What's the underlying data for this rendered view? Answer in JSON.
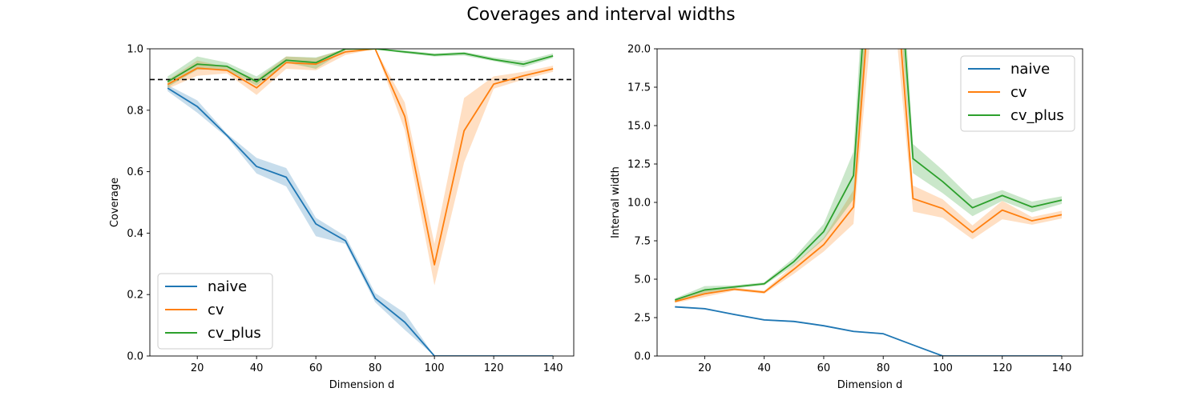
{
  "figure": {
    "title": "Coverages and interval widths"
  },
  "colors": {
    "naive": "#1f77b4",
    "cv": "#ff7f0e",
    "cv_plus": "#2ca02c",
    "reference": "#000000"
  },
  "chart_data": [
    {
      "type": "line",
      "xlabel": "Dimension d",
      "ylabel": "Coverage",
      "xlim": [
        4,
        147
      ],
      "ylim": [
        0,
        1.0
      ],
      "xticks": [
        20,
        40,
        60,
        80,
        100,
        120,
        140
      ],
      "yticks": [
        0.0,
        0.2,
        0.4,
        0.6,
        0.8,
        1.0
      ],
      "ytick_labels": [
        "0.0",
        "0.2",
        "0.4",
        "0.6",
        "0.8",
        "1.0"
      ],
      "reference_line": {
        "y": 0.9,
        "style": "dashed"
      },
      "legend_position": "lower-left",
      "grid": false,
      "x": [
        10,
        20,
        30,
        40,
        50,
        60,
        70,
        80,
        90,
        100,
        110,
        120,
        130,
        140
      ],
      "series": [
        {
          "name": "naive",
          "color": "#1f77b4",
          "values": [
            0.872,
            0.812,
            0.718,
            0.617,
            0.582,
            0.43,
            0.375,
            0.188,
            0.11,
            0.0,
            0.0,
            0.0,
            0.0,
            0.0
          ],
          "lower": [
            0.862,
            0.792,
            0.712,
            0.594,
            0.552,
            0.39,
            0.365,
            0.175,
            0.085,
            0.0,
            0.0,
            0.0,
            0.0,
            0.0
          ],
          "upper": [
            0.882,
            0.832,
            0.724,
            0.645,
            0.612,
            0.45,
            0.39,
            0.205,
            0.14,
            0.0,
            0.0,
            0.0,
            0.0,
            0.0
          ]
        },
        {
          "name": "cv",
          "color": "#ff7f0e",
          "values": [
            0.884,
            0.937,
            0.93,
            0.873,
            0.955,
            0.95,
            0.99,
            1.0,
            0.78,
            0.297,
            0.733,
            0.885,
            0.912,
            0.935
          ],
          "lower": [
            0.87,
            0.912,
            0.92,
            0.85,
            0.935,
            0.93,
            0.98,
            1.0,
            0.735,
            0.23,
            0.63,
            0.87,
            0.9,
            0.925
          ],
          "upper": [
            0.898,
            0.962,
            0.94,
            0.9,
            0.975,
            0.97,
            1.0,
            1.0,
            0.825,
            0.365,
            0.84,
            0.91,
            0.925,
            0.945
          ]
        },
        {
          "name": "cv_plus",
          "color": "#2ca02c",
          "values": [
            0.893,
            0.95,
            0.943,
            0.893,
            0.963,
            0.955,
            1.0,
            1.0,
            0.99,
            0.98,
            0.985,
            0.965,
            0.95,
            0.977
          ],
          "lower": [
            0.875,
            0.932,
            0.932,
            0.88,
            0.955,
            0.935,
            0.995,
            1.0,
            0.985,
            0.975,
            0.978,
            0.96,
            0.94,
            0.97
          ],
          "upper": [
            0.91,
            0.975,
            0.955,
            0.91,
            0.975,
            0.972,
            1.0,
            1.0,
            0.995,
            0.985,
            0.99,
            0.972,
            0.96,
            0.985
          ]
        }
      ]
    },
    {
      "type": "line",
      "xlabel": "Dimension d",
      "ylabel": "Interval width",
      "xlim": [
        4,
        147
      ],
      "ylim": [
        0,
        20.0
      ],
      "xticks": [
        20,
        40,
        60,
        80,
        100,
        120,
        140
      ],
      "yticks": [
        0.0,
        2.5,
        5.0,
        7.5,
        10.0,
        12.5,
        15.0,
        17.5,
        20.0
      ],
      "ytick_labels": [
        "0.0",
        "2.5",
        "5.0",
        "7.5",
        "10.0",
        "12.5",
        "15.0",
        "17.5",
        "20.0"
      ],
      "legend_position": "upper-right",
      "grid": false,
      "x": [
        10,
        20,
        30,
        40,
        50,
        60,
        70,
        80,
        90,
        100,
        110,
        120,
        130,
        140
      ],
      "series": [
        {
          "name": "naive",
          "color": "#1f77b4",
          "values": [
            3.2,
            3.08,
            2.7,
            2.35,
            2.25,
            1.97,
            1.6,
            1.45,
            0.72,
            0.0,
            0.0,
            0.0,
            0.0,
            0.0
          ],
          "lower": [
            3.15,
            3.03,
            2.65,
            2.3,
            2.2,
            1.92,
            1.55,
            1.4,
            0.68,
            0.0,
            0.0,
            0.0,
            0.0,
            0.0
          ],
          "upper": [
            3.25,
            3.13,
            2.75,
            2.4,
            2.3,
            2.02,
            1.65,
            1.5,
            0.76,
            0.0,
            0.0,
            0.0,
            0.0,
            0.0
          ]
        },
        {
          "name": "cv",
          "color": "#ff7f0e",
          "values": [
            3.55,
            4.05,
            4.35,
            4.15,
            5.65,
            7.25,
            9.7,
            35.0,
            10.25,
            9.6,
            8.05,
            9.5,
            8.8,
            9.2
          ],
          "lower": [
            3.45,
            3.85,
            4.25,
            4.05,
            5.35,
            6.8,
            8.6,
            30.0,
            9.4,
            9.0,
            7.6,
            8.9,
            8.55,
            8.95
          ],
          "upper": [
            3.65,
            4.25,
            4.45,
            4.25,
            5.95,
            7.7,
            10.8,
            40.0,
            11.1,
            10.2,
            8.5,
            10.1,
            9.05,
            9.45
          ]
        },
        {
          "name": "cv_plus",
          "color": "#2ca02c",
          "values": [
            3.65,
            4.3,
            4.5,
            4.7,
            6.15,
            8.1,
            11.75,
            40.0,
            12.85,
            11.35,
            9.65,
            10.45,
            9.7,
            10.15
          ],
          "lower": [
            3.55,
            4.1,
            4.4,
            4.6,
            5.9,
            7.6,
            10.2,
            35.0,
            11.9,
            10.6,
            9.1,
            10.1,
            9.35,
            9.9
          ],
          "upper": [
            3.75,
            4.55,
            4.6,
            4.8,
            6.4,
            8.6,
            13.3,
            45.0,
            13.8,
            12.1,
            10.2,
            10.8,
            10.05,
            10.4
          ]
        }
      ]
    }
  ]
}
